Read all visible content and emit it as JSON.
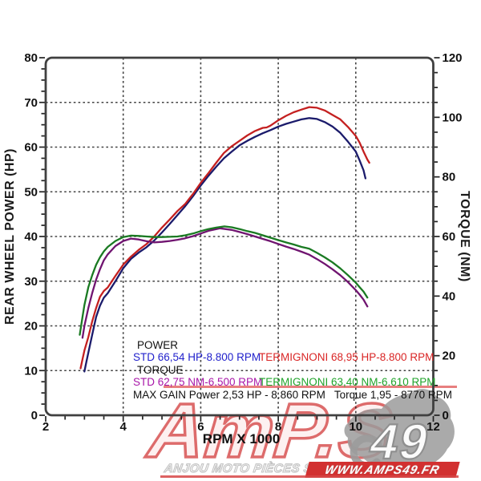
{
  "chart_data": {
    "type": "line",
    "title": "",
    "xlabel": "RPM X 1000",
    "ylabel_left": "REAR WHEEL POWER (HP)",
    "ylabel_right": "TORQUE (NM)",
    "x_range": [
      2,
      12
    ],
    "y_left_range": [
      0,
      80
    ],
    "y_right_range": [
      0,
      120
    ],
    "grid": "dashed",
    "x_ticks": {
      "label_step": 2,
      "minor_step": 0.5,
      "labels": [
        "2",
        "4",
        "6",
        "8",
        "10",
        "12"
      ]
    },
    "y_left_ticks": {
      "label_step": 10,
      "minor_step": 2.5,
      "labels": [
        "0",
        "10",
        "20",
        "30",
        "40",
        "50",
        "60",
        "70",
        "80"
      ]
    },
    "y_right_ticks": {
      "label_step": 20,
      "minor_step": 5,
      "labels": [
        "0",
        "20",
        "40",
        "60",
        "80",
        "100",
        "120"
      ]
    },
    "series": [
      {
        "name": "STD power",
        "axis": "left",
        "unit": "HP",
        "color": "#1b1b6b",
        "peak": {
          "value": 66.54,
          "rpm": 8800
        },
        "points": [
          [
            3.0,
            9.8
          ],
          [
            3.05,
            12
          ],
          [
            3.1,
            14
          ],
          [
            3.2,
            18
          ],
          [
            3.3,
            22
          ],
          [
            3.4,
            24.5
          ],
          [
            3.5,
            26.3
          ],
          [
            3.6,
            27.3
          ],
          [
            3.8,
            30
          ],
          [
            4.0,
            32.9
          ],
          [
            4.2,
            35
          ],
          [
            4.4,
            36.4
          ],
          [
            4.6,
            37.6
          ],
          [
            4.8,
            39.1
          ],
          [
            5.0,
            40.9
          ],
          [
            5.2,
            42.8
          ],
          [
            5.4,
            44.8
          ],
          [
            5.6,
            46.8
          ],
          [
            5.8,
            49
          ],
          [
            6.0,
            51.4
          ],
          [
            6.2,
            53.6
          ],
          [
            6.4,
            55.6
          ],
          [
            6.6,
            57.5
          ],
          [
            6.8,
            59
          ],
          [
            7.0,
            60.4
          ],
          [
            7.2,
            61.4
          ],
          [
            7.4,
            62.3
          ],
          [
            7.6,
            63.1
          ],
          [
            7.8,
            63.8
          ],
          [
            8.0,
            64.6
          ],
          [
            8.2,
            65.2
          ],
          [
            8.4,
            65.7
          ],
          [
            8.6,
            66.2
          ],
          [
            8.8,
            66.5
          ],
          [
            9.0,
            66.3
          ],
          [
            9.2,
            65.6
          ],
          [
            9.4,
            64.6
          ],
          [
            9.6,
            63.2
          ],
          [
            9.8,
            61.2
          ],
          [
            10.0,
            59
          ],
          [
            10.1,
            57
          ],
          [
            10.2,
            54.8
          ],
          [
            10.25,
            53
          ]
        ]
      },
      {
        "name": "TERMIGNONI power",
        "axis": "left",
        "unit": "HP",
        "color": "#c42020",
        "peak": {
          "value": 68.95,
          "rpm": 8800
        },
        "points": [
          [
            2.9,
            10.5
          ],
          [
            2.95,
            12.5
          ],
          [
            3.0,
            14.5
          ],
          [
            3.1,
            17.5
          ],
          [
            3.2,
            21
          ],
          [
            3.3,
            24
          ],
          [
            3.4,
            26.5
          ],
          [
            3.5,
            27.8
          ],
          [
            3.6,
            28.6
          ],
          [
            3.8,
            31.2
          ],
          [
            4.0,
            33.7
          ],
          [
            4.2,
            35.5
          ],
          [
            4.4,
            37
          ],
          [
            4.6,
            38.3
          ],
          [
            4.8,
            40
          ],
          [
            5.0,
            42
          ],
          [
            5.2,
            43.8
          ],
          [
            5.4,
            45.7
          ],
          [
            5.6,
            47.3
          ],
          [
            5.8,
            49.5
          ],
          [
            6.0,
            52
          ],
          [
            6.2,
            54.2
          ],
          [
            6.4,
            56.5
          ],
          [
            6.6,
            58.7
          ],
          [
            6.8,
            60.2
          ],
          [
            7.0,
            61.4
          ],
          [
            7.2,
            62.6
          ],
          [
            7.4,
            63.6
          ],
          [
            7.6,
            64.3
          ],
          [
            7.7,
            64.4
          ],
          [
            7.8,
            64.8
          ],
          [
            8.0,
            66
          ],
          [
            8.2,
            67
          ],
          [
            8.4,
            67.8
          ],
          [
            8.6,
            68.4
          ],
          [
            8.8,
            68.95
          ],
          [
            9.0,
            68.8
          ],
          [
            9.2,
            68.2
          ],
          [
            9.4,
            67.2
          ],
          [
            9.6,
            66.2
          ],
          [
            9.8,
            64.5
          ],
          [
            10.0,
            62.5
          ],
          [
            10.1,
            61
          ],
          [
            10.2,
            59
          ],
          [
            10.3,
            57.2
          ],
          [
            10.35,
            56.5
          ]
        ]
      },
      {
        "name": "STD torque",
        "axis": "right",
        "unit": "NM",
        "color": "#701470",
        "peak": {
          "value": 62.75,
          "rpm": 6500
        },
        "points": [
          [
            2.95,
            26
          ],
          [
            3.0,
            30
          ],
          [
            3.1,
            36
          ],
          [
            3.2,
            41
          ],
          [
            3.3,
            45.5
          ],
          [
            3.4,
            49
          ],
          [
            3.5,
            52
          ],
          [
            3.6,
            54
          ],
          [
            3.8,
            56.8
          ],
          [
            4.0,
            58.5
          ],
          [
            4.2,
            59.3
          ],
          [
            4.4,
            59
          ],
          [
            4.6,
            58.4
          ],
          [
            4.8,
            58
          ],
          [
            5.0,
            58.2
          ],
          [
            5.2,
            58.5
          ],
          [
            5.4,
            58.9
          ],
          [
            5.6,
            59.4
          ],
          [
            5.8,
            60.1
          ],
          [
            6.0,
            61
          ],
          [
            6.2,
            61.9
          ],
          [
            6.5,
            62.75
          ],
          [
            6.8,
            62.2
          ],
          [
            7.0,
            61.5
          ],
          [
            7.2,
            60.8
          ],
          [
            7.4,
            60
          ],
          [
            7.6,
            59.2
          ],
          [
            7.8,
            58.4
          ],
          [
            8.0,
            57.5
          ],
          [
            8.2,
            56.6
          ],
          [
            8.4,
            55.8
          ],
          [
            8.6,
            54.9
          ],
          [
            8.8,
            53.9
          ],
          [
            9.0,
            52.4
          ],
          [
            9.2,
            50.8
          ],
          [
            9.4,
            49
          ],
          [
            9.6,
            47
          ],
          [
            9.8,
            44.7
          ],
          [
            10.0,
            42
          ],
          [
            10.1,
            40.5
          ],
          [
            10.2,
            38.8
          ],
          [
            10.3,
            36.5
          ]
        ]
      },
      {
        "name": "TERMIGNONI torque",
        "axis": "right",
        "unit": "NM",
        "color": "#1a7a22",
        "peak": {
          "value": 63.4,
          "rpm": 6610
        },
        "points": [
          [
            2.88,
            27
          ],
          [
            2.95,
            33
          ],
          [
            3.0,
            37
          ],
          [
            3.1,
            43
          ],
          [
            3.2,
            47
          ],
          [
            3.3,
            50.5
          ],
          [
            3.4,
            53
          ],
          [
            3.5,
            55
          ],
          [
            3.6,
            56.5
          ],
          [
            3.8,
            58.5
          ],
          [
            4.0,
            59.8
          ],
          [
            4.2,
            60.3
          ],
          [
            4.4,
            60.2
          ],
          [
            4.6,
            60
          ],
          [
            4.8,
            59.8
          ],
          [
            5.0,
            59.8
          ],
          [
            5.2,
            59.9
          ],
          [
            5.4,
            60
          ],
          [
            5.6,
            60.4
          ],
          [
            5.8,
            61
          ],
          [
            6.0,
            61.8
          ],
          [
            6.2,
            62.5
          ],
          [
            6.4,
            63
          ],
          [
            6.61,
            63.4
          ],
          [
            6.8,
            63.1
          ],
          [
            7.0,
            62.5
          ],
          [
            7.2,
            61.8
          ],
          [
            7.4,
            61.2
          ],
          [
            7.6,
            60.4
          ],
          [
            7.8,
            59.6
          ],
          [
            8.0,
            58.8
          ],
          [
            8.2,
            58
          ],
          [
            8.4,
            57.3
          ],
          [
            8.6,
            56.5
          ],
          [
            8.8,
            55.9
          ],
          [
            9.0,
            54.5
          ],
          [
            9.2,
            53
          ],
          [
            9.4,
            51.3
          ],
          [
            9.6,
            49.3
          ],
          [
            9.8,
            47
          ],
          [
            10.0,
            44.5
          ],
          [
            10.1,
            43
          ],
          [
            10.2,
            41.5
          ],
          [
            10.3,
            39.5
          ]
        ]
      }
    ]
  },
  "legend": {
    "power_header": "POWER",
    "power_std": "STD 66,54 HP-8.800 RPM",
    "power_term": "TERMIGNONI 68,95 HP-8.800 RPM",
    "torque_header": "TORQUE",
    "torque_std": "STD 62,75 NM-6.500 RPM",
    "torque_term": "TERMIGNONI 63,40 NM-6.610 RPM",
    "max_gain": "MAX GAIN Power 2,53 HP - 8.860 RPM   Torque 1,95 - 8770 RPM",
    "colors": {
      "power_std": "#2222cc",
      "power_term": "#d92525",
      "torque_std": "#a816a8",
      "torque_term": "#1fa32a",
      "header": "#111111"
    }
  },
  "watermark": {
    "logo_text": "AmP.S",
    "logo_number": "49",
    "tagline": "ANJOU MOTO PIÈCES SERVICES",
    "website": "WWW.AMPS49.FR",
    "accent_red": "#d23030",
    "silhouette_gray": "#9b9b9b"
  }
}
